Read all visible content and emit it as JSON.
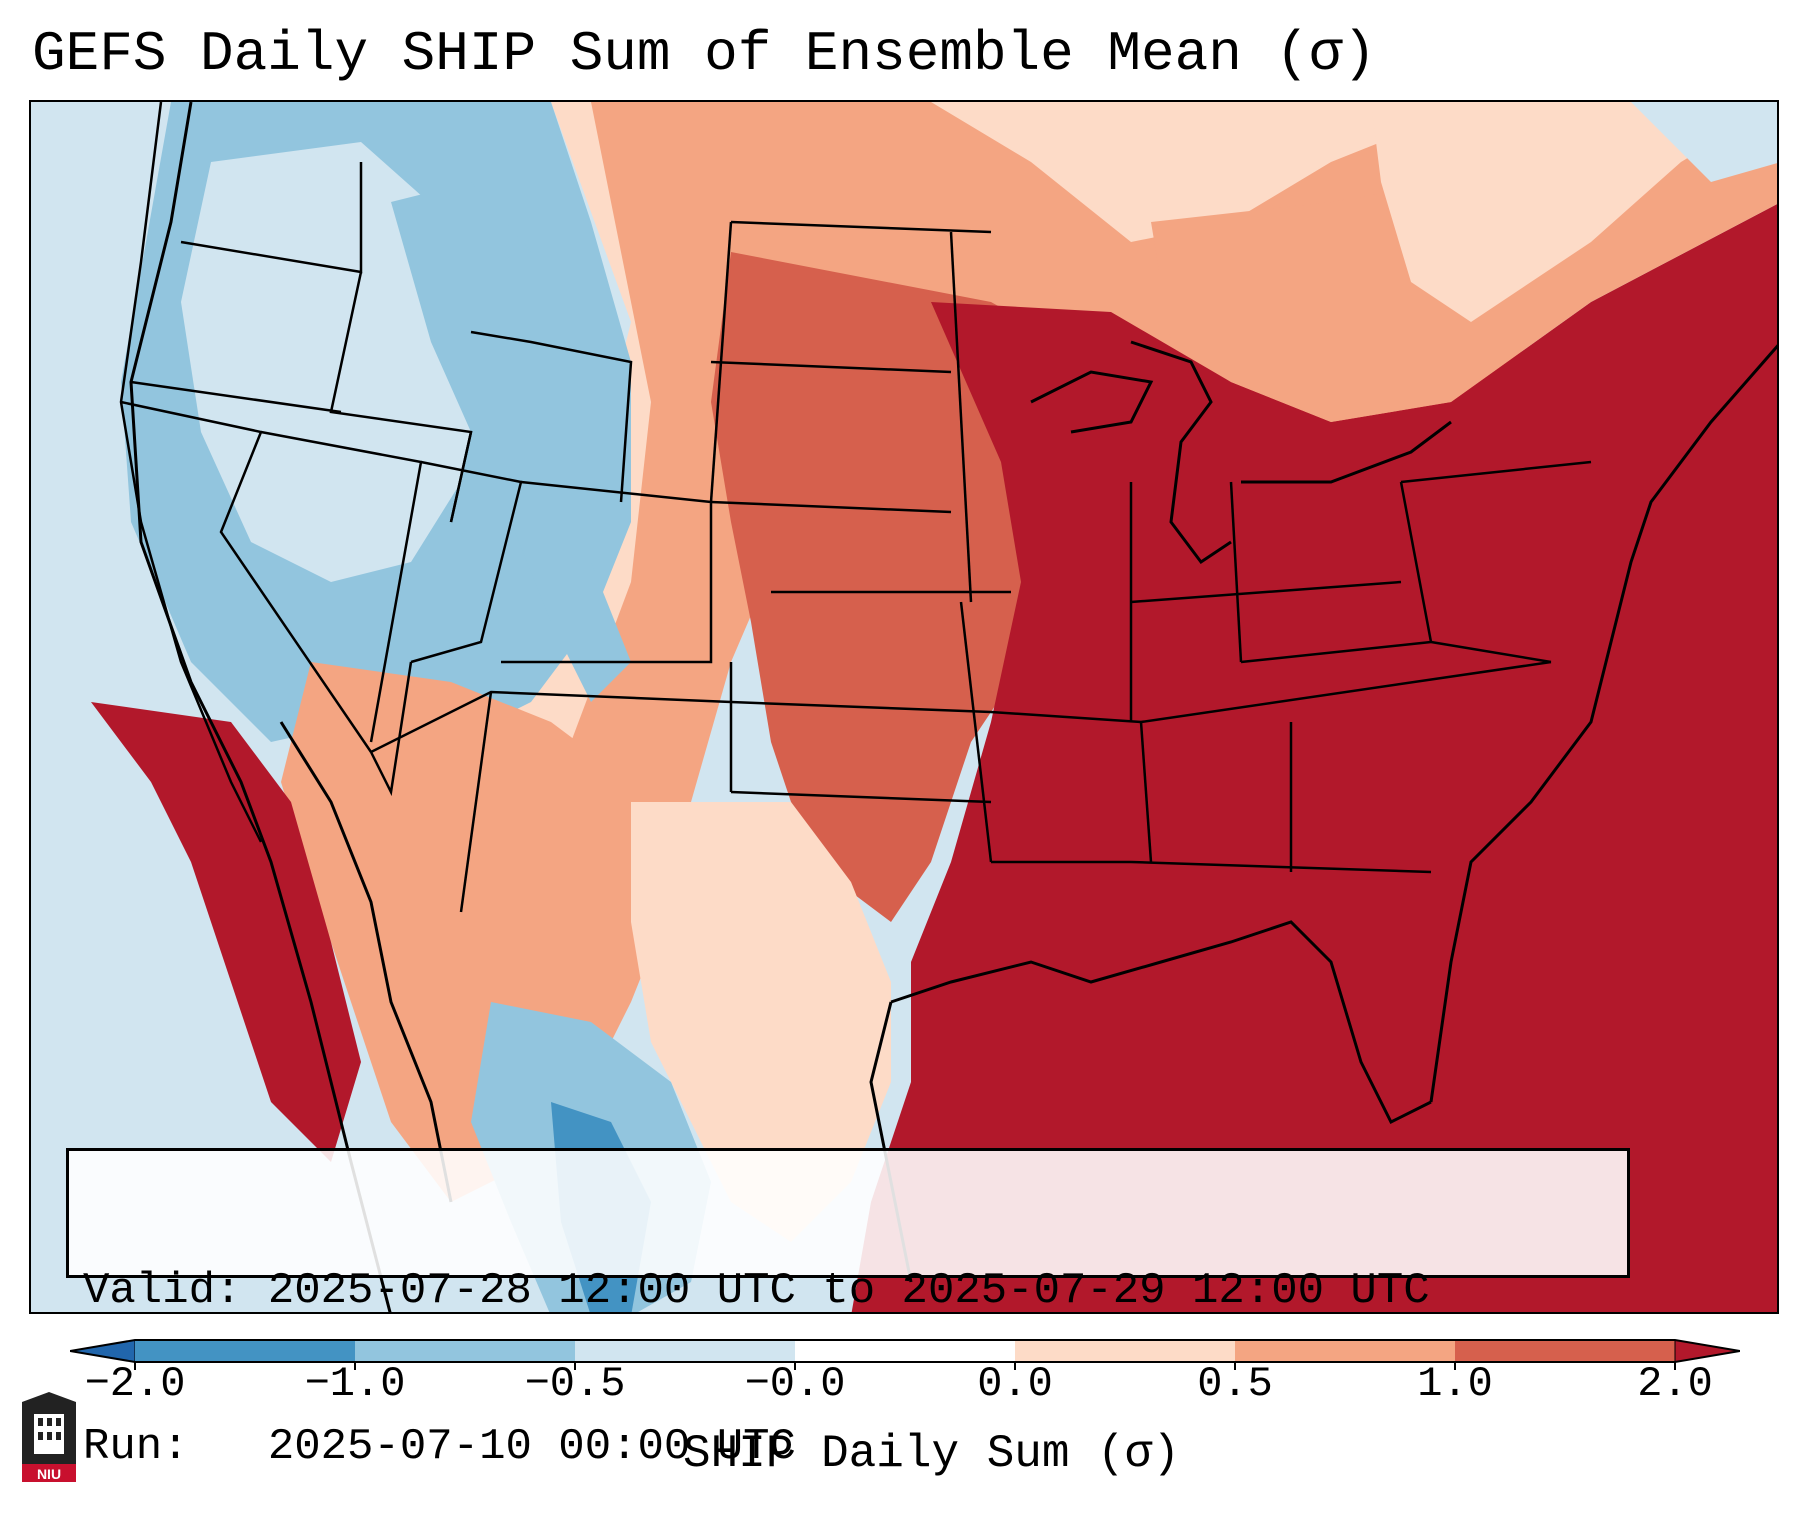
{
  "title": "GEFS Daily SHIP Sum of Ensemble Mean (σ)",
  "info": {
    "valid_label": "Valid:",
    "valid_value": "2025-07-28 12:00 UTC to 2025-07-29 12:00 UTC",
    "run_label": "Run:",
    "run_value": "2025-07-10 00:00 UTC"
  },
  "colorbar": {
    "title": "SHIP Daily Sum (σ)",
    "tick_labels": [
      "−2.0",
      "−1.0",
      "−0.5",
      "−0.0",
      "0.0",
      "0.5",
      "1.0",
      "2.0"
    ],
    "colors": [
      "#2166ac",
      "#4393c3",
      "#92c5de",
      "#d1e5f0",
      "#ffffff",
      "#fddbc7",
      "#f4a582",
      "#d6604d",
      "#b2182b"
    ],
    "extend": "both"
  },
  "map_region": "Contiguous United States",
  "logo_text": "NIU"
}
